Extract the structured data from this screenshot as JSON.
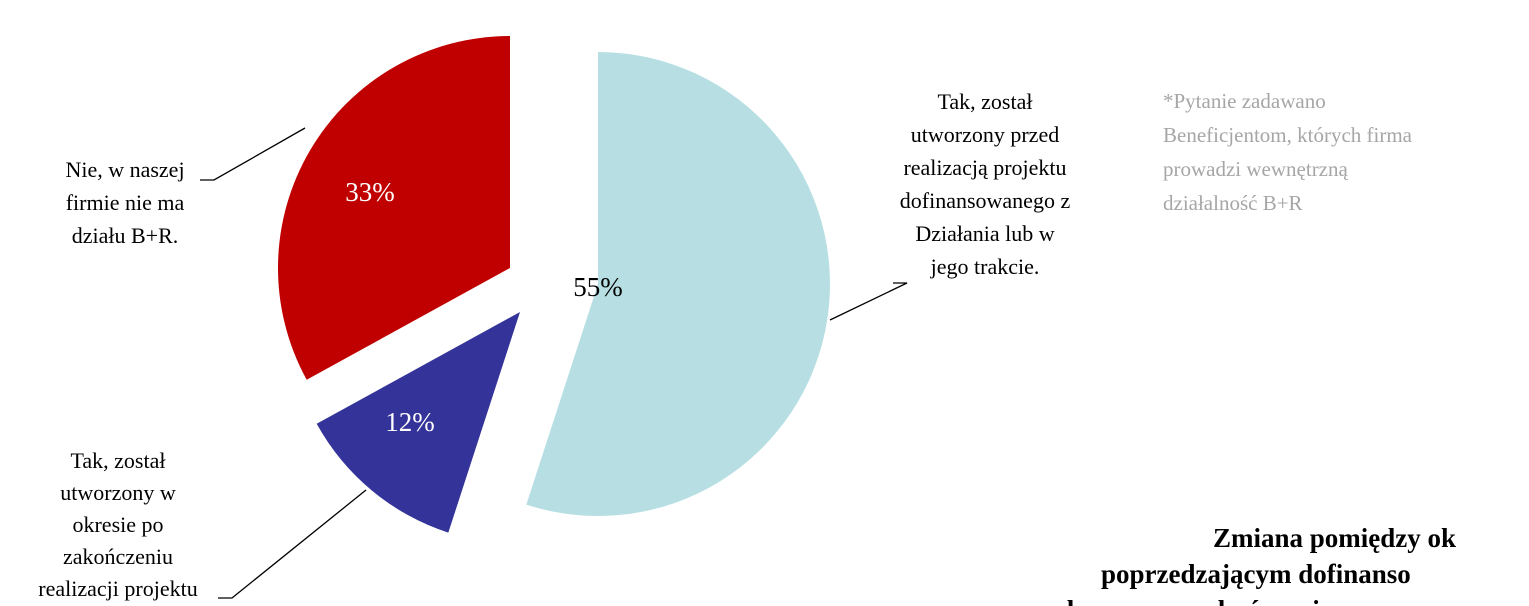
{
  "chart_data": {
    "type": "pie",
    "categories": [
      "Tak, został\nutworzony przed\nrealizacją projektu\ndofinansowanego z\nDziałania lub w\njego trakcie.",
      "Tak, został\nutworzony w\nokresie po\nzakończeniu\nrealizacji projektu",
      "Nie, w naszej\nfirmie nie ma\ndziału B+R."
    ],
    "values": [
      55,
      12,
      33
    ],
    "value_labels": [
      "55%",
      "12%",
      "33%"
    ],
    "colors": [
      "#b7dfe3",
      "#333399",
      "#c00000"
    ],
    "note": "*Pytanie zadawano\nBeneficjentom, których firma\nprowadzi wewnętrzną\ndziałalność B+R",
    "title": "Zmiana pomiędzy ok\npoprzedzającym dofinanso\na okresem po zakończeniu pro"
  }
}
